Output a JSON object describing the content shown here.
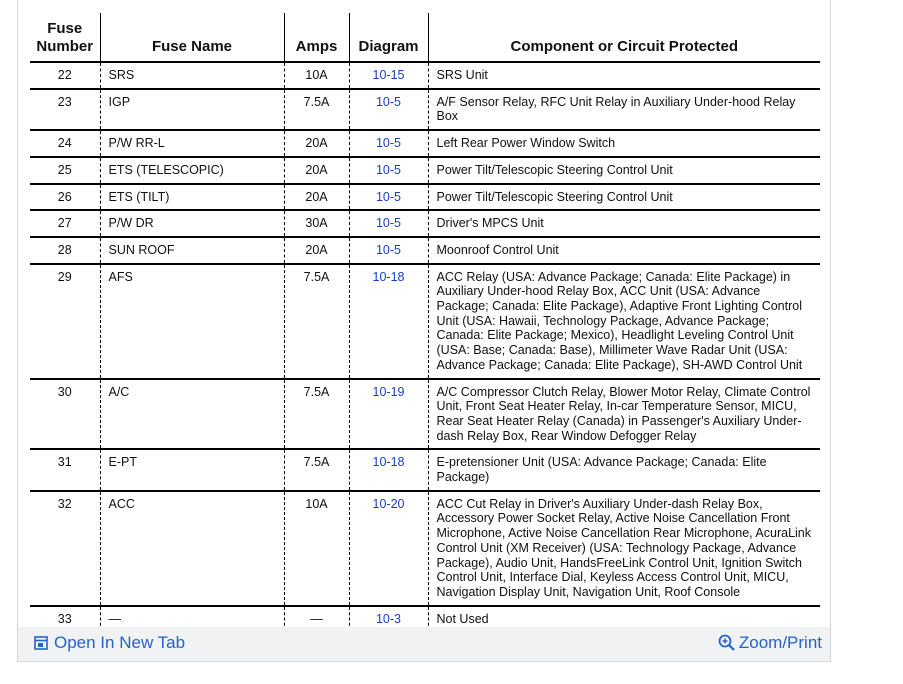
{
  "table": {
    "headers": [
      "Fuse Number",
      "Fuse Name",
      "Amps",
      "Diagram",
      "Component or Circuit Protected"
    ],
    "rows": [
      [
        "22",
        "SRS",
        "10A",
        "10-15",
        "SRS Unit"
      ],
      [
        "23",
        "IGP",
        "7.5A",
        "10-5",
        "A/F Sensor Relay, RFC Unit Relay in Auxiliary Under-hood Relay Box"
      ],
      [
        "24",
        "P/W RR-L",
        "20A",
        "10-5",
        "Left Rear Power Window Switch"
      ],
      [
        "25",
        "ETS (TELESCOPIC)",
        "20A",
        "10-5",
        "Power Tilt/Telescopic Steering Control Unit"
      ],
      [
        "26",
        "ETS (TILT)",
        "20A",
        "10-5",
        "Power Tilt/Telescopic Steering Control Unit"
      ],
      [
        "27",
        "P/W DR",
        "30A",
        "10-5",
        "Driver's MPCS Unit"
      ],
      [
        "28",
        "SUN ROOF",
        "20A",
        "10-5",
        "Moonroof Control Unit"
      ],
      [
        "29",
        "AFS",
        "7.5A",
        "10-18",
        "ACC Relay (USA: Advance Package; Canada: Elite Package) in Auxiliary Under-hood Relay Box, ACC Unit (USA: Advance Package; Canada: Elite Package), Adaptive Front Lighting Control Unit (USA: Hawaii, Technology Package, Advance Package; Canada: Elite Package; Mexico), Headlight Leveling Control Unit (USA: Base; Canada: Base), Millimeter Wave Radar Unit (USA: Advance Package; Canada: Elite Package), SH-AWD Control Unit"
      ],
      [
        "30",
        "A/C",
        "7.5A",
        "10-19",
        "A/C Compressor Clutch Relay, Blower Motor Relay, Climate Control Unit, Front Seat Heater Relay, In-car Temperature Sensor, MICU, Rear Seat Heater Relay (Canada) in Passenger's Auxiliary Under-dash Relay Box, Rear Window Defogger Relay"
      ],
      [
        "31",
        "E-PT",
        "7.5A",
        "10-18",
        "E-pretensioner Unit (USA: Advance Package; Canada: Elite Package)"
      ],
      [
        "32",
        "ACC",
        "10A",
        "10-20",
        "ACC Cut Relay in Driver's Auxiliary Under-dash Relay Box, Accessory Power Socket Relay, Active Noise Cancellation Front Microphone, Active Noise Cancellation Rear Microphone, AcuraLink Control Unit (XM Receiver) (USA: Technology Package, Advance Package), Audio Unit, HandsFreeLink Control Unit, Ignition Switch Control Unit, Interface Dial, Keyless Access Control Unit, MICU, Navigation Display Unit, Navigation Unit, Roof Console"
      ],
      [
        "33",
        "—",
        "—",
        "10-3",
        "Not Used"
      ]
    ]
  },
  "footer": {
    "open_link": "Open In New Tab",
    "zoom_link": "Zoom/Print"
  }
}
